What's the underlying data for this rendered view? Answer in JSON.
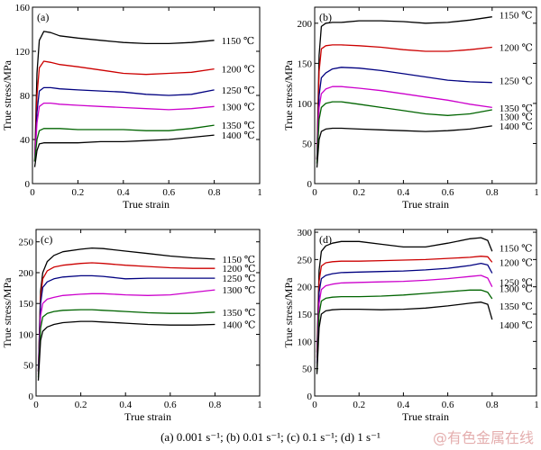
{
  "caption": "(a) 0.001 s⁻¹; (b) 0.01 s⁻¹; (c) 0.1 s⁻¹; (d) 1 s⁻¹",
  "watermark": "@有色金属在线",
  "chart_data": [
    {
      "panel": "(a)",
      "type": "line",
      "xlabel": "True strain",
      "ylabel": "True stress/MPa",
      "xlim": [
        0,
        1.0
      ],
      "ylim": [
        0,
        160
      ],
      "xticks": [
        0,
        0.2,
        0.4,
        0.6,
        0.8,
        1.0
      ],
      "yticks": [
        0,
        40,
        80,
        120,
        160
      ],
      "series": [
        {
          "name": "1150 ℃",
          "color": "#000000",
          "x": [
            0.01,
            0.02,
            0.03,
            0.05,
            0.08,
            0.12,
            0.2,
            0.3,
            0.4,
            0.5,
            0.6,
            0.7,
            0.8
          ],
          "y": [
            20,
            100,
            130,
            138,
            137,
            134,
            132,
            130,
            128,
            127,
            127,
            128,
            130
          ]
        },
        {
          "name": "1200 ℃",
          "color": "#cc0000",
          "x": [
            0.01,
            0.02,
            0.03,
            0.05,
            0.08,
            0.12,
            0.2,
            0.3,
            0.4,
            0.5,
            0.6,
            0.7,
            0.8
          ],
          "y": [
            20,
            80,
            105,
            111,
            110,
            108,
            106,
            103,
            100,
            99,
            100,
            101,
            104
          ]
        },
        {
          "name": "1250 ℃",
          "color": "#000080",
          "x": [
            0.01,
            0.02,
            0.03,
            0.05,
            0.08,
            0.12,
            0.2,
            0.3,
            0.4,
            0.5,
            0.6,
            0.7,
            0.8
          ],
          "y": [
            20,
            65,
            84,
            87,
            87,
            86,
            85,
            84,
            83,
            81,
            80,
            81,
            85
          ]
        },
        {
          "name": "1300 ℃",
          "color": "#cc00cc",
          "x": [
            0.01,
            0.02,
            0.03,
            0.05,
            0.08,
            0.12,
            0.2,
            0.3,
            0.4,
            0.5,
            0.6,
            0.7,
            0.8
          ],
          "y": [
            20,
            55,
            70,
            73,
            73,
            72,
            71,
            70,
            69,
            68,
            67,
            68,
            70
          ]
        },
        {
          "name": "1350 ℃",
          "color": "#006400",
          "x": [
            0.01,
            0.02,
            0.03,
            0.05,
            0.08,
            0.12,
            0.2,
            0.3,
            0.4,
            0.5,
            0.6,
            0.7,
            0.8
          ],
          "y": [
            20,
            40,
            48,
            50,
            50,
            50,
            49,
            49,
            49,
            48,
            48,
            50,
            53
          ]
        },
        {
          "name": "1400 ℃",
          "color": "#000000",
          "x": [
            0.01,
            0.02,
            0.03,
            0.05,
            0.08,
            0.12,
            0.2,
            0.3,
            0.4,
            0.5,
            0.6,
            0.7,
            0.8
          ],
          "y": [
            15,
            30,
            36,
            37,
            37,
            37,
            37,
            38,
            38,
            39,
            40,
            42,
            44
          ]
        }
      ]
    },
    {
      "panel": "(b)",
      "type": "line",
      "xlabel": "True strain",
      "ylabel": "True stress/MPa",
      "xlim": [
        0,
        1.0
      ],
      "ylim": [
        0,
        220
      ],
      "xticks": [
        0,
        0.2,
        0.4,
        0.6,
        0.8,
        1.0
      ],
      "yticks": [
        0,
        50,
        100,
        150,
        200
      ],
      "series": [
        {
          "name": "1150 ℃",
          "color": "#000000",
          "x": [
            0.01,
            0.02,
            0.03,
            0.05,
            0.08,
            0.12,
            0.2,
            0.3,
            0.4,
            0.5,
            0.6,
            0.7,
            0.8
          ],
          "y": [
            30,
            160,
            196,
            200,
            201,
            201,
            203,
            203,
            202,
            200,
            201,
            204,
            208
          ]
        },
        {
          "name": "1200 ℃",
          "color": "#cc0000",
          "x": [
            0.01,
            0.02,
            0.03,
            0.05,
            0.08,
            0.12,
            0.2,
            0.3,
            0.4,
            0.5,
            0.6,
            0.7,
            0.8
          ],
          "y": [
            30,
            140,
            168,
            172,
            173,
            173,
            172,
            170,
            167,
            165,
            165,
            167,
            170
          ]
        },
        {
          "name": "1250 ℃",
          "color": "#000080",
          "x": [
            0.01,
            0.02,
            0.03,
            0.05,
            0.08,
            0.12,
            0.2,
            0.3,
            0.4,
            0.5,
            0.6,
            0.7,
            0.8
          ],
          "y": [
            30,
            110,
            132,
            138,
            143,
            145,
            144,
            141,
            137,
            133,
            129,
            127,
            126
          ]
        },
        {
          "name": "1300 ℃",
          "color": "#cc00cc",
          "x": [
            0.01,
            0.02,
            0.03,
            0.05,
            0.08,
            0.12,
            0.2,
            0.3,
            0.4,
            0.5,
            0.6,
            0.7,
            0.8
          ],
          "y": [
            30,
            95,
            112,
            118,
            121,
            121,
            119,
            116,
            112,
            108,
            104,
            99,
            95
          ]
        },
        {
          "name": "1350 ℃",
          "color": "#006400",
          "x": [
            0.01,
            0.02,
            0.03,
            0.05,
            0.08,
            0.12,
            0.2,
            0.3,
            0.4,
            0.5,
            0.6,
            0.7,
            0.8
          ],
          "y": [
            25,
            80,
            95,
            100,
            102,
            102,
            99,
            95,
            91,
            87,
            85,
            87,
            92
          ]
        },
        {
          "name": "1400 ℃",
          "color": "#000000",
          "x": [
            0.01,
            0.02,
            0.03,
            0.05,
            0.08,
            0.12,
            0.2,
            0.3,
            0.4,
            0.5,
            0.6,
            0.7,
            0.8
          ],
          "y": [
            20,
            55,
            65,
            68,
            69,
            69,
            68,
            67,
            66,
            65,
            66,
            68,
            72
          ]
        }
      ]
    },
    {
      "panel": "(c)",
      "type": "line",
      "xlabel": "True strain",
      "ylabel": "True stress/MPa",
      "xlim": [
        0,
        1.0
      ],
      "ylim": [
        0,
        270
      ],
      "xticks": [
        0,
        0.2,
        0.4,
        0.6,
        0.8,
        1.0
      ],
      "yticks": [
        0,
        50,
        100,
        150,
        200,
        250
      ],
      "series": [
        {
          "name": "1150 ℃",
          "color": "#000000",
          "x": [
            0.01,
            0.02,
            0.03,
            0.05,
            0.08,
            0.12,
            0.2,
            0.25,
            0.3,
            0.4,
            0.5,
            0.6,
            0.7,
            0.8
          ],
          "y": [
            40,
            170,
            200,
            218,
            228,
            234,
            238,
            240,
            239,
            235,
            231,
            227,
            224,
            222
          ]
        },
        {
          "name": "1200 ℃",
          "color": "#cc0000",
          "x": [
            0.01,
            0.02,
            0.03,
            0.05,
            0.08,
            0.12,
            0.2,
            0.25,
            0.3,
            0.4,
            0.5,
            0.6,
            0.7,
            0.8
          ],
          "y": [
            40,
            160,
            190,
            203,
            209,
            212,
            215,
            216,
            215,
            212,
            210,
            208,
            207,
            207
          ]
        },
        {
          "name": "1250 ℃",
          "color": "#000080",
          "x": [
            0.01,
            0.02,
            0.03,
            0.05,
            0.08,
            0.12,
            0.2,
            0.25,
            0.3,
            0.4,
            0.5,
            0.6,
            0.7,
            0.8
          ],
          "y": [
            40,
            150,
            176,
            185,
            190,
            193,
            195,
            195,
            194,
            190,
            191,
            191,
            191,
            191
          ]
        },
        {
          "name": "1300 ℃",
          "color": "#cc00cc",
          "x": [
            0.01,
            0.02,
            0.03,
            0.05,
            0.08,
            0.12,
            0.2,
            0.25,
            0.3,
            0.4,
            0.5,
            0.6,
            0.7,
            0.8
          ],
          "y": [
            35,
            130,
            150,
            157,
            160,
            163,
            165,
            166,
            166,
            164,
            163,
            164,
            168,
            172
          ]
        },
        {
          "name": "1350 ℃",
          "color": "#006400",
          "x": [
            0.01,
            0.02,
            0.03,
            0.05,
            0.08,
            0.12,
            0.2,
            0.25,
            0.3,
            0.4,
            0.5,
            0.6,
            0.7,
            0.8
          ],
          "y": [
            30,
            110,
            128,
            134,
            137,
            139,
            140,
            140,
            139,
            137,
            135,
            134,
            134,
            136
          ]
        },
        {
          "name": "1400 ℃",
          "color": "#000000",
          "x": [
            0.01,
            0.02,
            0.03,
            0.05,
            0.08,
            0.12,
            0.2,
            0.25,
            0.3,
            0.4,
            0.5,
            0.6,
            0.7,
            0.8
          ],
          "y": [
            25,
            90,
            105,
            112,
            116,
            119,
            121,
            121,
            120,
            118,
            116,
            115,
            115,
            116
          ]
        }
      ]
    },
    {
      "panel": "(d)",
      "type": "line",
      "xlabel": "True strain",
      "ylabel": "True stress/MPa",
      "xlim": [
        0,
        1.0
      ],
      "ylim": [
        0,
        305
      ],
      "xticks": [
        0,
        0.2,
        0.4,
        0.6,
        0.8,
        1.0
      ],
      "yticks": [
        0,
        50,
        100,
        150,
        200,
        250,
        300
      ],
      "series": [
        {
          "name": "1150 ℃",
          "color": "#000000",
          "x": [
            0.01,
            0.02,
            0.03,
            0.05,
            0.08,
            0.12,
            0.2,
            0.3,
            0.4,
            0.5,
            0.6,
            0.7,
            0.75,
            0.78,
            0.8
          ],
          "y": [
            80,
            230,
            265,
            275,
            280,
            283,
            283,
            278,
            273,
            273,
            280,
            288,
            290,
            285,
            265
          ]
        },
        {
          "name": "1200 ℃",
          "color": "#cc0000",
          "x": [
            0.01,
            0.02,
            0.03,
            0.05,
            0.08,
            0.12,
            0.2,
            0.3,
            0.4,
            0.5,
            0.6,
            0.7,
            0.75,
            0.78,
            0.8
          ],
          "y": [
            70,
            210,
            238,
            244,
            246,
            247,
            247,
            248,
            249,
            250,
            252,
            254,
            256,
            255,
            245
          ]
        },
        {
          "name": "1250 ℃",
          "color": "#000080",
          "x": [
            0.01,
            0.02,
            0.03,
            0.05,
            0.08,
            0.12,
            0.2,
            0.3,
            0.4,
            0.5,
            0.6,
            0.7,
            0.75,
            0.78,
            0.8
          ],
          "y": [
            60,
            190,
            215,
            221,
            224,
            226,
            227,
            228,
            229,
            231,
            234,
            239,
            243,
            240,
            225
          ]
        },
        {
          "name": "1300 ℃",
          "color": "#cc00cc",
          "x": [
            0.01,
            0.02,
            0.03,
            0.05,
            0.08,
            0.12,
            0.2,
            0.3,
            0.4,
            0.5,
            0.6,
            0.7,
            0.75,
            0.78,
            0.8
          ],
          "y": [
            50,
            170,
            195,
            202,
            205,
            207,
            208,
            209,
            210,
            212,
            215,
            219,
            221,
            216,
            200
          ]
        },
        {
          "name": "1350 ℃",
          "color": "#006400",
          "x": [
            0.01,
            0.02,
            0.03,
            0.05,
            0.08,
            0.12,
            0.2,
            0.3,
            0.4,
            0.5,
            0.6,
            0.7,
            0.75,
            0.78,
            0.8
          ],
          "y": [
            45,
            150,
            174,
            179,
            181,
            182,
            182,
            183,
            185,
            188,
            191,
            194,
            194,
            190,
            178
          ]
        },
        {
          "name": "1400 ℃",
          "color": "#000000",
          "x": [
            0.01,
            0.02,
            0.03,
            0.05,
            0.08,
            0.12,
            0.2,
            0.3,
            0.4,
            0.5,
            0.6,
            0.7,
            0.75,
            0.78,
            0.8
          ],
          "y": [
            40,
            125,
            150,
            156,
            158,
            159,
            159,
            158,
            159,
            161,
            165,
            170,
            172,
            168,
            140
          ]
        }
      ]
    }
  ]
}
